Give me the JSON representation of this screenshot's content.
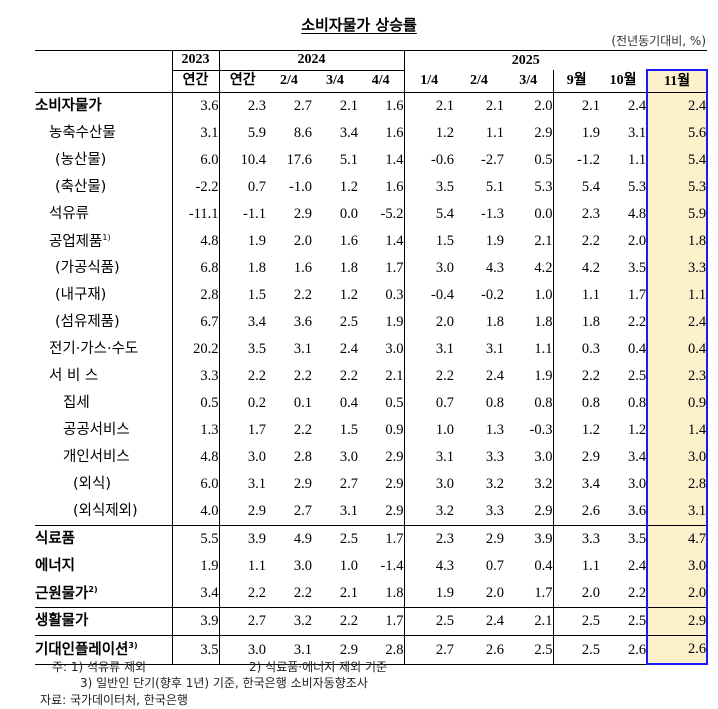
{
  "title": "소비자물가 상승률",
  "unit": "(전년동기대비, %)",
  "header": {
    "years": [
      "2023",
      "2024",
      "2025"
    ],
    "periods": [
      "연간",
      "연간",
      "2/4",
      "3/4",
      "4/4",
      "1/4",
      "2/4",
      "3/4",
      "9월",
      "10월",
      "11월"
    ]
  },
  "rows": [
    {
      "label": "소비자물가",
      "sup": "",
      "values": [
        "3.6",
        "2.3",
        "2.7",
        "2.1",
        "1.6",
        "2.1",
        "2.1",
        "2.0",
        "2.1",
        "2.4",
        "2.4"
      ]
    },
    {
      "label": "농축수산물",
      "sup": "",
      "values": [
        "3.1",
        "5.9",
        "8.6",
        "3.4",
        "1.6",
        "1.2",
        "1.1",
        "2.9",
        "1.9",
        "3.1",
        "5.6"
      ]
    },
    {
      "label": "(농산물)",
      "sup": "",
      "values": [
        "6.0",
        "10.4",
        "17.6",
        "5.1",
        "1.4",
        "-0.6",
        "-2.7",
        "0.5",
        "-1.2",
        "1.1",
        "5.4"
      ]
    },
    {
      "label": "(축산물)",
      "sup": "",
      "values": [
        "-2.2",
        "0.7",
        "-1.0",
        "1.2",
        "1.6",
        "3.5",
        "5.1",
        "5.3",
        "5.4",
        "5.3",
        "5.3"
      ]
    },
    {
      "label": "석유류",
      "sup": "",
      "values": [
        "-11.1",
        "-1.1",
        "2.9",
        "0.0",
        "-5.2",
        "5.4",
        "-1.3",
        "0.0",
        "2.3",
        "4.8",
        "5.9"
      ]
    },
    {
      "label": "공업제품",
      "sup": "1)",
      "values": [
        "4.8",
        "1.9",
        "2.0",
        "1.6",
        "1.4",
        "1.5",
        "1.9",
        "2.1",
        "2.2",
        "2.0",
        "1.8"
      ]
    },
    {
      "label": "(가공식품)",
      "sup": "",
      "values": [
        "6.8",
        "1.8",
        "1.6",
        "1.8",
        "1.7",
        "3.0",
        "4.3",
        "4.2",
        "4.2",
        "3.5",
        "3.3"
      ]
    },
    {
      "label": "(내구재)",
      "sup": "",
      "values": [
        "2.8",
        "1.5",
        "2.2",
        "1.2",
        "0.3",
        "-0.4",
        "-0.2",
        "1.0",
        "1.1",
        "1.7",
        "1.1"
      ]
    },
    {
      "label": "(섬유제품)",
      "sup": "",
      "values": [
        "6.7",
        "3.4",
        "3.6",
        "2.5",
        "1.9",
        "2.0",
        "1.8",
        "1.8",
        "1.8",
        "2.2",
        "2.4"
      ]
    },
    {
      "label": "전기·가스·수도",
      "sup": "",
      "values": [
        "20.2",
        "3.5",
        "3.1",
        "2.4",
        "3.0",
        "3.1",
        "3.1",
        "1.1",
        "0.3",
        "0.4",
        "0.4"
      ]
    },
    {
      "label": "서 비 스",
      "sup": "",
      "values": [
        "3.3",
        "2.2",
        "2.2",
        "2.2",
        "2.1",
        "2.2",
        "2.4",
        "1.9",
        "2.2",
        "2.5",
        "2.3"
      ]
    },
    {
      "label": "집세",
      "sup": "",
      "values": [
        "0.5",
        "0.2",
        "0.1",
        "0.4",
        "0.5",
        "0.7",
        "0.8",
        "0.8",
        "0.8",
        "0.8",
        "0.9"
      ]
    },
    {
      "label": "공공서비스",
      "sup": "",
      "values": [
        "1.3",
        "1.7",
        "2.2",
        "1.5",
        "0.9",
        "1.0",
        "1.3",
        "-0.3",
        "1.2",
        "1.2",
        "1.4"
      ]
    },
    {
      "label": "개인서비스",
      "sup": "",
      "values": [
        "4.8",
        "3.0",
        "2.8",
        "3.0",
        "2.9",
        "3.1",
        "3.3",
        "3.0",
        "2.9",
        "3.4",
        "3.0"
      ]
    },
    {
      "label": "(외식)",
      "sup": "",
      "values": [
        "6.0",
        "3.1",
        "2.9",
        "2.7",
        "2.9",
        "3.0",
        "3.2",
        "3.2",
        "3.4",
        "3.0",
        "2.8"
      ]
    },
    {
      "label": "(외식제외)",
      "sup": "",
      "values": [
        "4.0",
        "2.9",
        "2.7",
        "3.1",
        "2.9",
        "3.2",
        "3.3",
        "2.9",
        "2.6",
        "3.6",
        "3.1"
      ]
    },
    {
      "label": "식료품",
      "sup": "",
      "values": [
        "5.5",
        "3.9",
        "4.9",
        "2.5",
        "1.7",
        "2.3",
        "2.9",
        "3.9",
        "3.3",
        "3.5",
        "4.7"
      ]
    },
    {
      "label": "에너지",
      "sup": "",
      "values": [
        "1.9",
        "1.1",
        "3.0",
        "1.0",
        "-1.4",
        "4.3",
        "0.7",
        "0.4",
        "1.1",
        "2.4",
        "3.0"
      ]
    },
    {
      "label": "근원물가",
      "sup": "2)",
      "values": [
        "3.4",
        "2.2",
        "2.2",
        "2.1",
        "1.8",
        "1.9",
        "2.0",
        "1.7",
        "2.0",
        "2.2",
        "2.0"
      ]
    },
    {
      "label": "생활물가",
      "sup": "",
      "values": [
        "3.9",
        "2.7",
        "3.2",
        "2.2",
        "1.7",
        "2.5",
        "2.4",
        "2.1",
        "2.5",
        "2.5",
        "2.9"
      ]
    },
    {
      "label": "기대인플레이션",
      "sup": "3)",
      "values": [
        "3.5",
        "3.0",
        "3.1",
        "2.9",
        "2.8",
        "2.7",
        "2.6",
        "2.5",
        "2.5",
        "2.6",
        "2.6"
      ]
    }
  ],
  "notes": {
    "note1": "주: 1) 석유류 제외",
    "note2": "2) 식료품·에너지 제외 기준",
    "note3": "3) 일반인 단기(향후 1년) 기준, 한국은행 소비자동향조사",
    "source": "자료: 국가데이터처, 한국은행"
  },
  "colors": {
    "highlight_fill": "#fdf1cc",
    "highlight_border": "#1a1aff"
  }
}
